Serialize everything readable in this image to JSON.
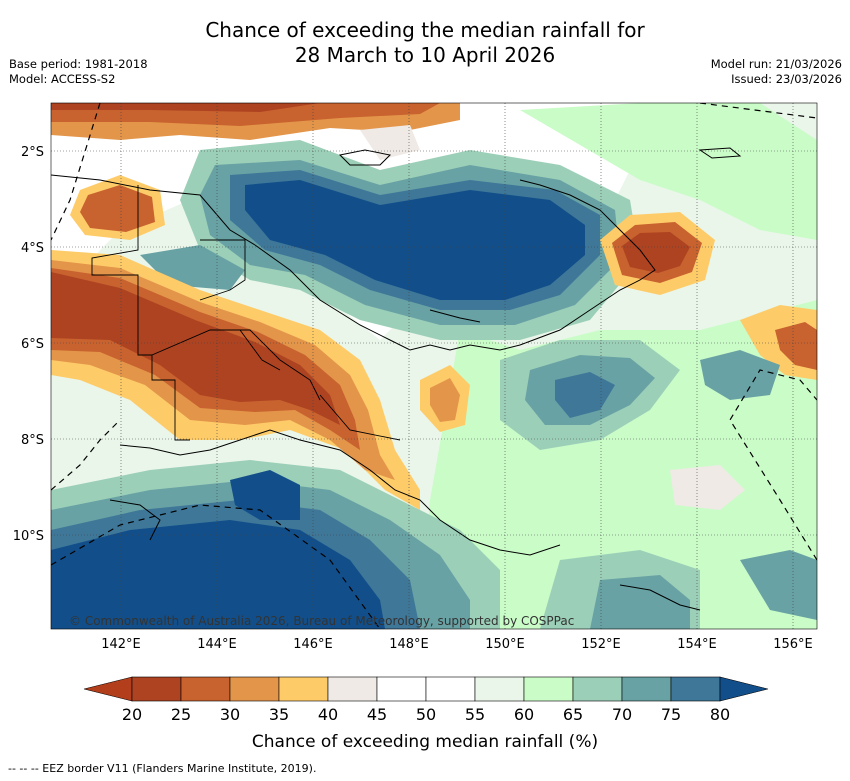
{
  "title": {
    "line1": "Chance of exceeding the median rainfall for",
    "line2": "28 March to 10 April 2026"
  },
  "meta": {
    "base_period": "Base period: 1981-2018",
    "model": "Model: ACCESS-S2",
    "model_run": "Model run: 21/03/2026",
    "issued": "Issued: 23/03/2026"
  },
  "map": {
    "lat_labels": [
      "2°S",
      "4°S",
      "6°S",
      "8°S",
      "10°S"
    ],
    "lon_labels": [
      "142°E",
      "144°E",
      "146°E",
      "148°E",
      "150°E",
      "152°E",
      "154°E",
      "156°E"
    ],
    "copyright": "© Commonwealth of Australia 2026, Bureau of Meteorology, supported by COSPPac"
  },
  "colorbar": {
    "ticks": [
      "20",
      "25",
      "30",
      "35",
      "40",
      "45",
      "50",
      "55",
      "60",
      "65",
      "70",
      "75",
      "80"
    ],
    "colors": [
      "#b23e1c",
      "#ad4321",
      "#c8622e",
      "#e3954a",
      "#fecb69",
      "#efeae5",
      "#ffffff",
      "#ffffff",
      "#eaf6ea",
      "#cafcc8",
      "#9ccfb8",
      "#68a2a4",
      "#3f7799",
      "#124f8a"
    ],
    "label": "Chance of exceeding median rainfall (%)"
  },
  "footer": "-- --  -- EEZ border V11 (Flanders Marine Institute, 2019)."
}
